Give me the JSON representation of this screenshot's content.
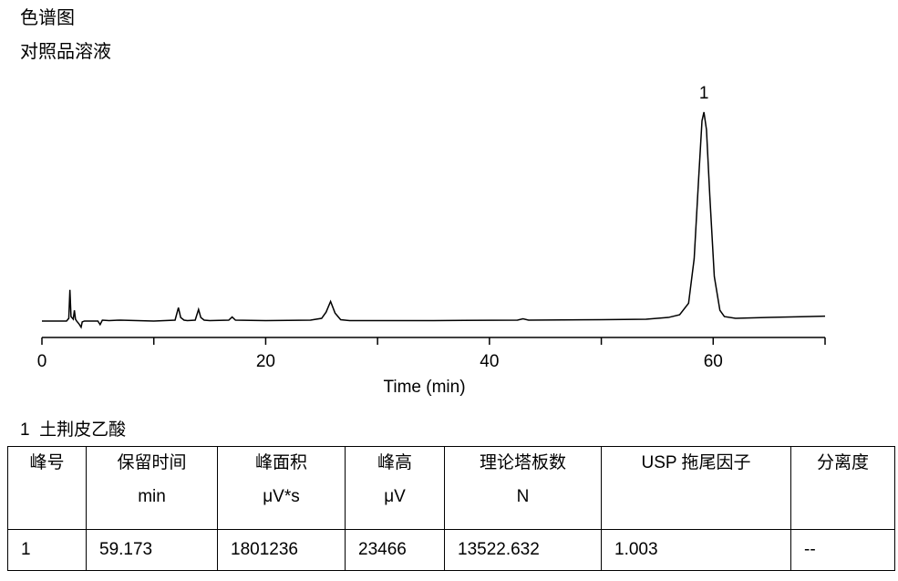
{
  "chart_data": {
    "type": "line",
    "title": "色谱图",
    "subtitle": "对照品溶液",
    "x_label": "Time (min)",
    "xlim": [
      0,
      70
    ],
    "xticks": [
      0,
      20,
      40,
      60
    ],
    "xminor_ticks": [
      10,
      30,
      50,
      70
    ],
    "ylim": [
      -1500,
      25000
    ],
    "color": "#000000",
    "peak_label": "1",
    "x": [
      0,
      2.2,
      2.4,
      2.5,
      2.6,
      2.8,
      2.9,
      3.0,
      3.1,
      3.3,
      3.5,
      3.6,
      3.8,
      4,
      5,
      5.2,
      5.4,
      6,
      7,
      10,
      11.9,
      12.2,
      12.4,
      12.7,
      13,
      13.7,
      14.0,
      14.2,
      14.5,
      15,
      16.7,
      17.0,
      17.3,
      20,
      24,
      25,
      25.4,
      25.8,
      26.2,
      26.7,
      27.5,
      35,
      42.5,
      43,
      43.5,
      50,
      54,
      56,
      57,
      57.8,
      58.3,
      58.7,
      59.0,
      59.173,
      59.4,
      59.7,
      60.1,
      60.6,
      61,
      62,
      65,
      70
    ],
    "values": [
      0,
      0,
      300,
      3500,
      500,
      200,
      1200,
      200,
      0,
      -300,
      -700,
      -100,
      0,
      0,
      0,
      -400,
      100,
      50,
      100,
      0,
      100,
      1500,
      400,
      100,
      50,
      100,
      1300,
      400,
      100,
      50,
      100,
      450,
      100,
      50,
      100,
      300,
      1000,
      2200,
      900,
      150,
      50,
      50,
      100,
      250,
      100,
      150,
      200,
      400,
      700,
      2000,
      7000,
      16000,
      22500,
      23466,
      21500,
      14000,
      5000,
      1200,
      500,
      300,
      400,
      550
    ],
    "peak_names": [
      {
        "id": "1",
        "name": "土荆皮乙酸"
      }
    ]
  },
  "table": {
    "columns": [
      {
        "label": "峰号"
      },
      {
        "label": "保留时间",
        "unit": "min"
      },
      {
        "label": "峰面积",
        "unit": "μV*s"
      },
      {
        "label": "峰高",
        "unit": "μV"
      },
      {
        "label": "理论塔板数",
        "unit": "N"
      },
      {
        "label": "USP 拖尾因子"
      },
      {
        "label": "分离度"
      }
    ],
    "rows": [
      [
        "1",
        "59.173",
        "1801236",
        "23466",
        "13522.632",
        "1.003",
        "--"
      ]
    ]
  }
}
